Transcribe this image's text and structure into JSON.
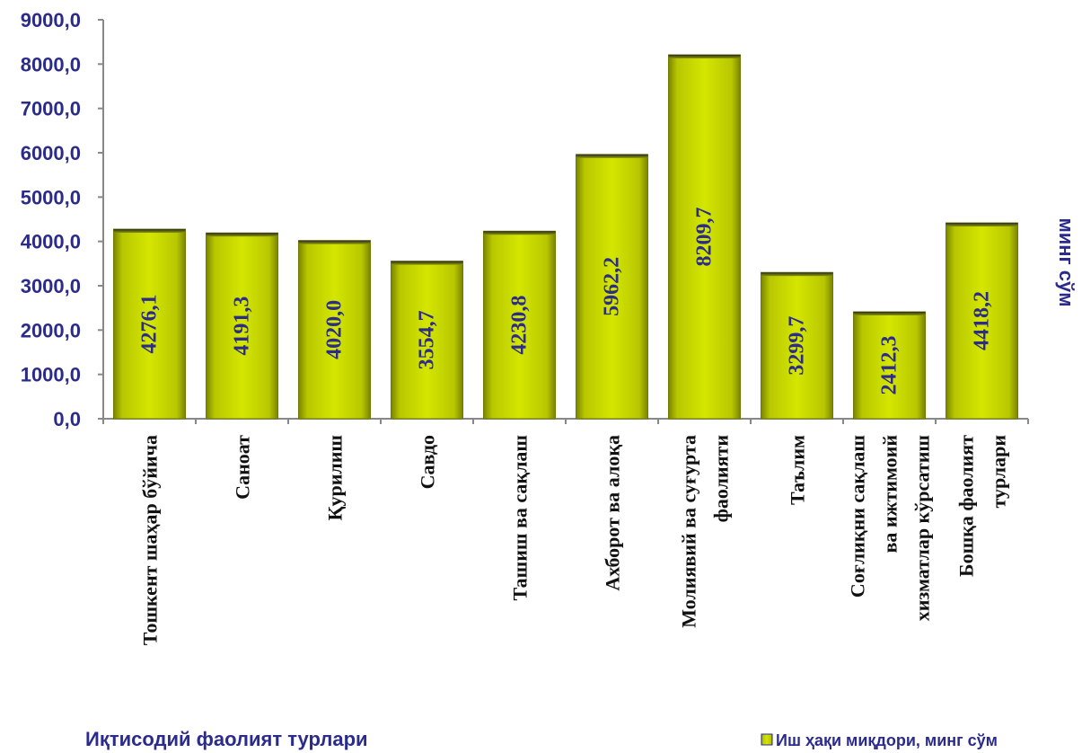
{
  "chart_data": {
    "type": "bar",
    "categories": [
      [
        "Тошкент шаҳар бўйича"
      ],
      [
        "Саноат"
      ],
      [
        "Қурилиш"
      ],
      [
        "Савдо"
      ],
      [
        "Ташиш ва сақлаш"
      ],
      [
        "Ахборот ва алоқа"
      ],
      [
        "Молиявий ва суғурта",
        "фаолияти"
      ],
      [
        "Таълим"
      ],
      [
        "Соғлиқни сақлаш",
        "ва ижтимоий",
        "хизматлар кўрсатиш"
      ],
      [
        "Бошқа фаолият",
        "турлари"
      ]
    ],
    "series": [
      {
        "name": "Иш ҳақи миқдори, минг сўм",
        "values": [
          4276.1,
          4191.3,
          4020.0,
          3554.7,
          4230.8,
          5962.2,
          8209.7,
          3299.7,
          2412.3,
          4418.2
        ],
        "labels": [
          "4276,1",
          "4191,3",
          "4020,0",
          "3554,7",
          "4230,8",
          "5962,2",
          "8209,7",
          "3299,7",
          "2412,3",
          "4418,2"
        ]
      }
    ],
    "xlabel": "Иқтисодий фаолият турлари",
    "ylabel": "минг сўм",
    "ylim": [
      0,
      9000
    ],
    "yticks": [
      "0,0",
      "1000,0",
      "2000,0",
      "3000,0",
      "4000,0",
      "5000,0",
      "6000,0",
      "7000,0",
      "8000,0",
      "9000,0"
    ],
    "grid": false,
    "legend_position": "bottom-right",
    "bar_color": "#b5c400",
    "text_color": "#2b2b8c"
  }
}
